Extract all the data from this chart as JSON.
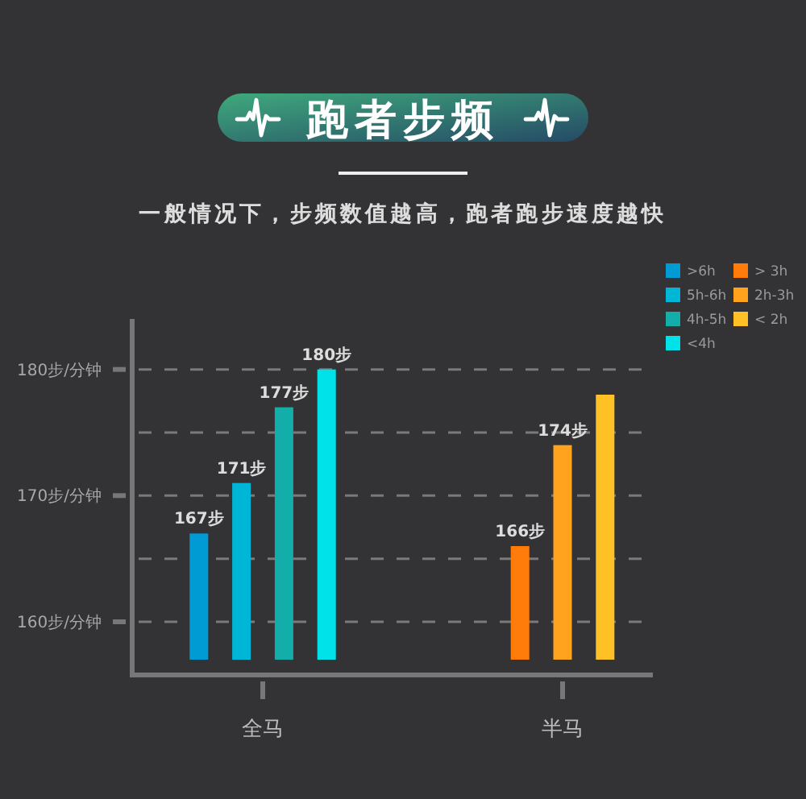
{
  "chart_data": {
    "type": "bar",
    "title": "跑者步频",
    "subtitle": "一般情况下，步频数值越高，跑者跑步速度越快",
    "categories": [
      "全马",
      "半马"
    ],
    "series": [
      {
        "name": ">6h",
        "color": "#009bd4",
        "values": [
          167,
          null
        ],
        "value_labels": [
          "167步",
          null
        ]
      },
      {
        "name": "5h-6h",
        "color": "#00b6d6",
        "values": [
          171,
          null
        ],
        "value_labels": [
          "171步",
          null
        ]
      },
      {
        "name": "4h-5h",
        "color": "#13aeaa",
        "values": [
          177,
          null
        ],
        "value_labels": [
          "177步",
          null
        ]
      },
      {
        "name": "<4h",
        "color": "#00e2ea",
        "values": [
          180,
          null
        ],
        "value_labels": [
          "180步",
          null
        ]
      },
      {
        "name": "> 3h",
        "color": "#ff7c0a",
        "values": [
          null,
          166
        ],
        "value_labels": [
          null,
          "166步"
        ]
      },
      {
        "name": "2h-3h",
        "color": "#ffa31e",
        "values": [
          null,
          174
        ],
        "value_labels": [
          null,
          "174步"
        ]
      },
      {
        "name": "< 2h",
        "color": "#ffc125",
        "values": [
          null,
          178
        ],
        "value_labels": [
          null,
          null
        ]
      }
    ],
    "ylim": [
      157,
      184
    ],
    "yticks": [
      {
        "value": 160,
        "label": "160步/分钟"
      },
      {
        "value": 165,
        "label": null
      },
      {
        "value": 170,
        "label": "170步/分钟"
      },
      {
        "value": 175,
        "label": null
      },
      {
        "value": 180,
        "label": "180步/分钟"
      }
    ],
    "grid": "y",
    "legend": "top right"
  }
}
